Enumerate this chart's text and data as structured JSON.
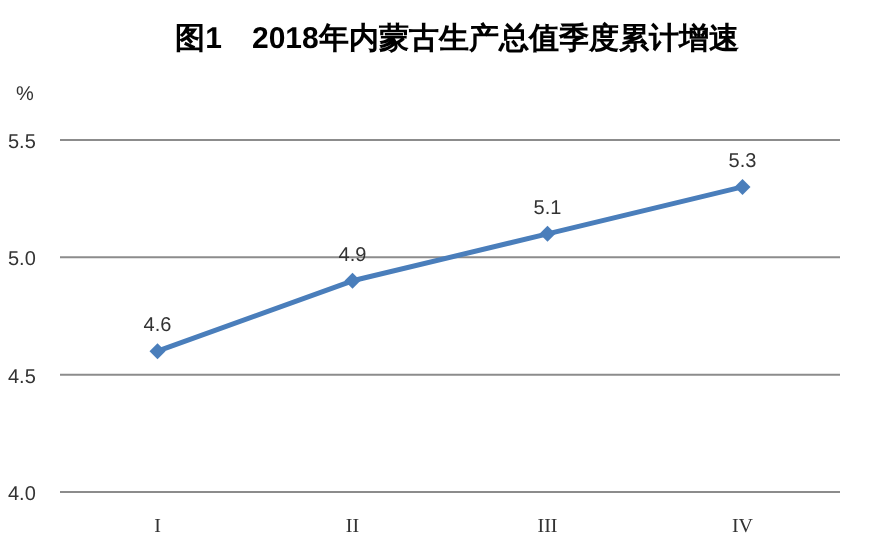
{
  "chart_data": {
    "type": "line",
    "title": "图1　2018年内蒙古生产总值季度累计增速",
    "ylabel": "%",
    "categories": [
      "I",
      "II",
      "III",
      "IV"
    ],
    "series": [
      {
        "color": "#4a7ebb",
        "values": [
          4.6,
          4.9,
          5.1,
          5.3
        ]
      }
    ],
    "ylim": [
      4,
      5.5
    ],
    "yticks": [
      {
        "value": 4,
        "label": "4.0"
      },
      {
        "value": 4.5,
        "label": "4.5"
      },
      {
        "value": 5,
        "label": "5.0"
      },
      {
        "value": 5.5,
        "label": "5.5"
      }
    ],
    "grid": "y",
    "marker": "diamond",
    "line_style": "solid",
    "data_labels": true
  }
}
